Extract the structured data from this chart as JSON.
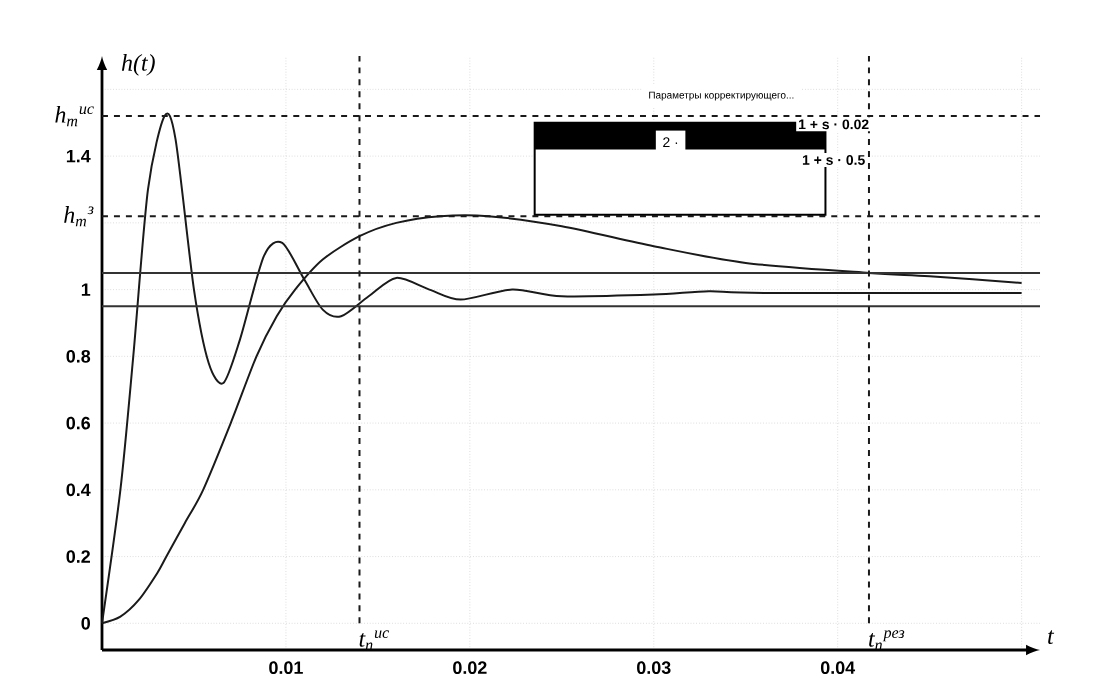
{
  "chart_data": {
    "type": "line",
    "xlabel": "t",
    "ylabel": "h(t)",
    "xlim": [
      0,
      0.051
    ],
    "ylim": [
      -0.08,
      1.7
    ],
    "xticks": [
      0.01,
      0.02,
      0.03,
      0.04,
      {
        "value": 0.05,
        "label": null
      }
    ],
    "yticks": [
      0,
      0.2,
      0.4,
      0.6,
      0.8,
      1,
      {
        "value": 1.2,
        "label": null
      },
      1.4,
      {
        "value": 1.6,
        "label": null
      }
    ],
    "grid": true,
    "marker": "none",
    "line_style": "solid",
    "series": [
      {
        "color": "#1a1a1a",
        "x": [
          0,
          0.001,
          0.0017,
          0.0025,
          0.0034,
          0.004,
          0.005,
          0.0058,
          0.0066,
          0.0075,
          0.0088,
          0.0098,
          0.011,
          0.012,
          0.013,
          0.0145,
          0.016,
          0.0178,
          0.0195,
          0.0223,
          0.025,
          0.03,
          0.033,
          0.036,
          0.05
        ],
        "values": [
          0,
          0.4,
          0.8,
          1.3,
          1.52,
          1.45,
          1.0,
          0.78,
          0.72,
          0.85,
          1.1,
          1.14,
          1.03,
          0.94,
          0.92,
          0.98,
          1.035,
          1.0,
          0.97,
          1.0,
          0.98,
          0.985,
          0.995,
          0.99,
          0.99
        ]
      },
      {
        "color": "#1a1a1a",
        "x": [
          0,
          0.001,
          0.002,
          0.003,
          0.0035,
          0.0045,
          0.0055,
          0.007,
          0.0084,
          0.0095,
          0.0105,
          0.012,
          0.014,
          0.016,
          0.0184,
          0.021,
          0.025,
          0.03,
          0.035,
          0.0417,
          0.045,
          0.05
        ],
        "values": [
          0,
          0.02,
          0.07,
          0.15,
          0.2,
          0.3,
          0.4,
          0.6,
          0.8,
          0.92,
          1.0,
          1.09,
          1.16,
          1.2,
          1.22,
          1.22,
          1.19,
          1.13,
          1.08,
          1.05,
          1.04,
          1.02
        ]
      }
    ],
    "ref_lines": [
      {
        "axis": "y",
        "value": 1.05,
        "color": "#333333",
        "line_style": "solid"
      },
      {
        "axis": "y",
        "value": 0.95,
        "color": "#333333",
        "line_style": "solid"
      },
      {
        "axis": "y",
        "value": 1.52,
        "label": "h$_{m}$$^{ис}$",
        "color": "#1a1a1a",
        "line_style": "dashed"
      },
      {
        "axis": "y",
        "value": 1.22,
        "label": "h$_{m}$$^{з}$",
        "color": "#1a1a1a",
        "line_style": "dashed"
      },
      {
        "axis": "x",
        "value": 0.014,
        "label": "t$_{п}$$^{ис}$",
        "color": "#1a1a1a",
        "line_style": "dashed"
      },
      {
        "axis": "x",
        "value": 0.0417,
        "label": "t$_{п}$$^{рез}$",
        "color": "#1a1a1a",
        "line_style": "dashed"
      }
    ],
    "annotations": [
      "Параметры корректирующего...",
      "2  ·",
      "1 + s · 0.02",
      "1 + s · 0.5"
    ]
  }
}
